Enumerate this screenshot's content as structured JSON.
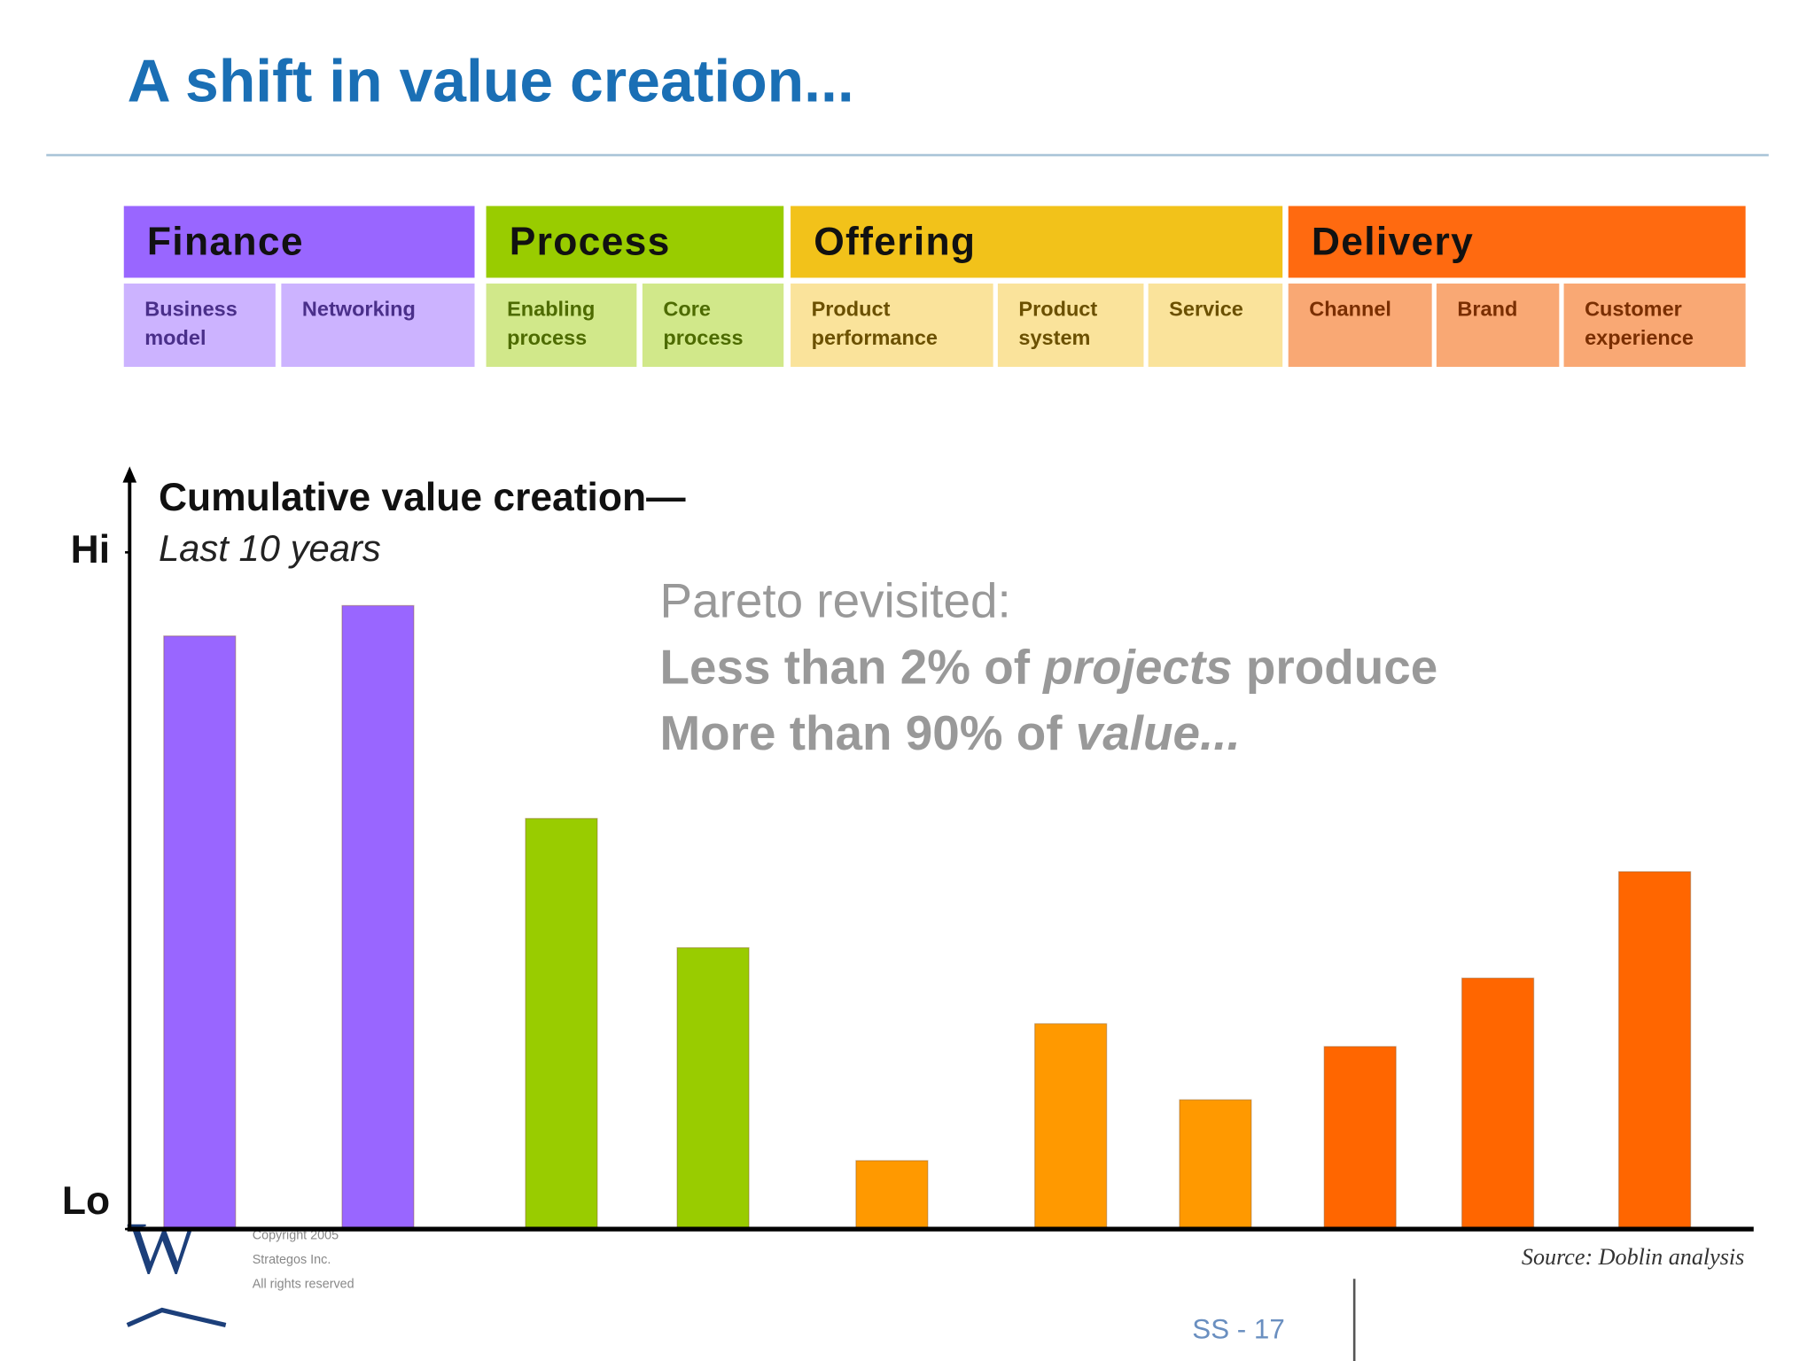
{
  "title": "A shift in value creation...",
  "chart_data": {
    "type": "bar",
    "y_label": "Cumulative value creation—",
    "y_sublabel": "Last 10 years",
    "groups": [
      {
        "name": "Finance",
        "color": "#9966ff",
        "header_color": "#9966ff",
        "cell_color": "#ccb3ff",
        "categories": [
          "Business model",
          "Networking"
        ],
        "values": [
          78,
          82
        ]
      },
      {
        "name": "Process",
        "color": "#99cc00",
        "header_color": "#99cc00",
        "cell_color": "#d1e88a",
        "categories": [
          "Enabling process",
          "Core process"
        ],
        "values": [
          54,
          37
        ]
      },
      {
        "name": "Offering",
        "color": "#ff9900",
        "header_color": "#f2c21a",
        "cell_color": "#fae39b",
        "categories": [
          "Product performance",
          "Product system",
          "Service"
        ],
        "values": [
          9,
          27,
          17
        ]
      },
      {
        "name": "Delivery",
        "color": "#ff6600",
        "header_color": "#ff6a10",
        "cell_color": "#f9a874",
        "categories": [
          "Channel",
          "Brand",
          "Customer experience"
        ],
        "values": [
          24,
          33,
          47
        ]
      }
    ],
    "ylim": [
      0,
      100
    ],
    "yticks": [
      {
        "value": 0,
        "label": "Lo"
      },
      {
        "value": 89,
        "label": "Hi"
      }
    ],
    "annotation": {
      "heading": "Pareto revisited:",
      "lines": [
        [
          {
            "text": "Less than 2% of "
          },
          {
            "text": "projects",
            "style": "italic"
          },
          {
            "text": " produce"
          }
        ],
        [
          {
            "text": "More than 90% of "
          },
          {
            "text": "value...",
            "style": "italic"
          }
        ]
      ]
    },
    "source": "Source: Doblin analysis"
  },
  "footer": {
    "logo": "W",
    "copyright": [
      "Copyright 2005",
      "Strategos Inc.",
      "All rights reserved"
    ],
    "page": "SS - 17"
  }
}
